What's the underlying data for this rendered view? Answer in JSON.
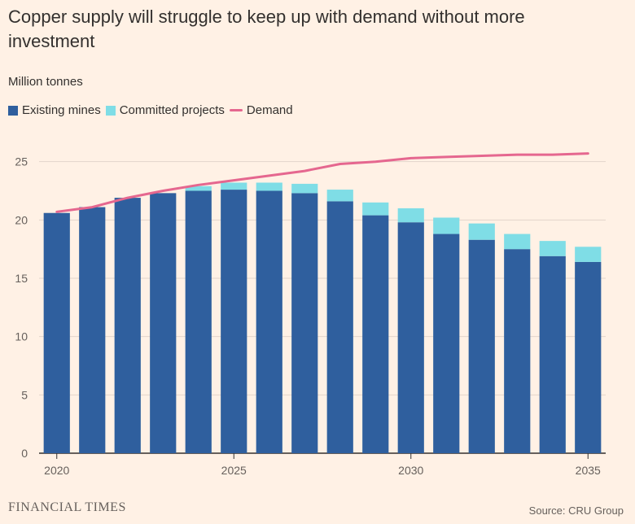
{
  "chart_data": {
    "type": "bar",
    "title": "Copper supply will struggle to keep up with demand without more investment",
    "ylabel": "Million tonnes",
    "xlabel": "",
    "ylim": [
      0,
      27
    ],
    "yticks": [
      0,
      5,
      10,
      15,
      20,
      25
    ],
    "xticks": [
      "2020",
      "2025",
      "2030",
      "2035"
    ],
    "stacked": true,
    "grid": true,
    "legend_position": "top-left",
    "categories": [
      2020,
      2021,
      2022,
      2023,
      2024,
      2025,
      2026,
      2027,
      2028,
      2029,
      2030,
      2031,
      2032,
      2033,
      2034,
      2035
    ],
    "series": [
      {
        "name": "Existing mines",
        "type": "bar",
        "color": "#2f5f9e",
        "values": [
          20.6,
          21.1,
          21.9,
          22.3,
          22.5,
          22.6,
          22.5,
          22.3,
          21.6,
          20.4,
          19.8,
          18.8,
          18.3,
          17.5,
          16.9,
          16.4
        ]
      },
      {
        "name": "Committed projects",
        "type": "bar",
        "color": "#7fdde6",
        "values": [
          0.0,
          0.0,
          0.0,
          0.0,
          0.4,
          0.6,
          0.7,
          0.8,
          1.0,
          1.1,
          1.2,
          1.4,
          1.4,
          1.3,
          1.3,
          1.3
        ]
      },
      {
        "name": "Demand",
        "type": "line",
        "color": "#e5678f",
        "values": [
          20.7,
          21.1,
          21.9,
          22.5,
          23.0,
          23.4,
          23.8,
          24.2,
          24.8,
          25.0,
          25.3,
          25.4,
          25.5,
          25.6,
          25.6,
          25.7
        ]
      }
    ]
  },
  "footer": {
    "brand": "FINANCIAL TIMES",
    "source": "Source: CRU Group"
  }
}
